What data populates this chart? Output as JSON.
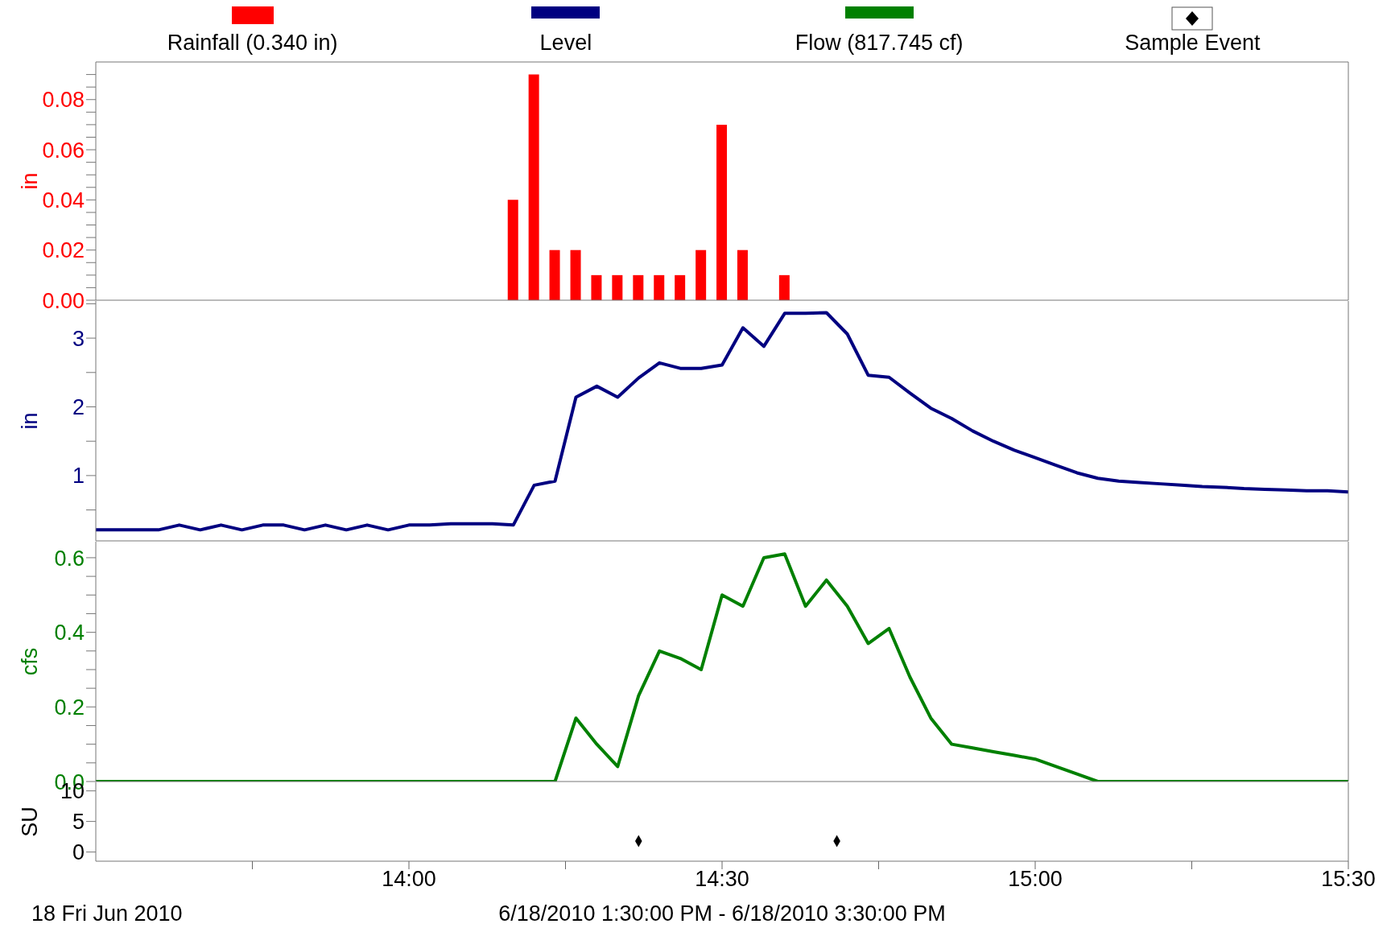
{
  "chart_data": [
    {
      "type": "bar",
      "ylabel": "in",
      "legend": "top",
      "tick_labels": "y",
      "xlim": [
        13.5,
        15.5
      ],
      "ylim": [
        0,
        0.095
      ],
      "yticks": [
        {
          "value": 0,
          "label": "0.00"
        },
        {
          "value": 0.005,
          "label": null
        },
        {
          "value": 0.01,
          "label": null
        },
        {
          "value": 0.015,
          "label": null
        },
        0.02,
        {
          "value": 0.025,
          "label": null
        },
        {
          "value": 0.03,
          "label": null
        },
        {
          "value": 0.035,
          "label": null
        },
        0.04,
        {
          "value": 0.045,
          "label": null
        },
        {
          "value": 0.05,
          "label": null
        },
        {
          "value": 0.055,
          "label": null
        },
        0.06,
        {
          "value": 0.065,
          "label": null
        },
        {
          "value": 0.07,
          "label": null
        },
        {
          "value": 0.075,
          "label": null
        },
        0.08,
        {
          "value": 0.085,
          "label": null
        },
        {
          "value": 0.09,
          "label": null
        }
      ],
      "series": [
        {
          "name": "Rainfall (0.340 in)",
          "color": "#ff0000",
          "x": [
            14.1667,
            14.2,
            14.2333,
            14.2667,
            14.3,
            14.3333,
            14.3667,
            14.4,
            14.4333,
            14.4667,
            14.5,
            14.5333,
            14.6
          ],
          "values": [
            0.04,
            0.09,
            0.02,
            0.02,
            0.01,
            0.01,
            0.01,
            0.01,
            0.01,
            0.02,
            0.07,
            0.02,
            0.01
          ]
        }
      ]
    },
    {
      "type": "line",
      "ylabel": "in",
      "legend": "top",
      "tick_labels": "y",
      "marker": "none",
      "xlim": [
        13.5,
        15.5
      ],
      "ylim": [
        0.05,
        3.54
      ],
      "yticks": [
        {
          "value": 0.5,
          "label": null
        },
        1,
        {
          "value": 1.5,
          "label": null
        },
        2,
        {
          "value": 2.5,
          "label": null
        },
        3,
        {
          "value": 3.5,
          "label": null
        }
      ],
      "x": [
        13.5,
        13.5333,
        13.5667,
        13.6,
        13.6333,
        13.6667,
        13.7,
        13.7333,
        13.7667,
        13.8,
        13.8333,
        13.8667,
        13.9,
        13.9333,
        13.9667,
        14,
        14.0333,
        14.0667,
        14.1,
        14.1333,
        14.1667,
        14.2,
        14.2333,
        14.2667,
        14.3,
        14.3333,
        14.3667,
        14.4,
        14.4333,
        14.4667,
        14.5,
        14.5333,
        14.5667,
        14.6,
        14.6333,
        14.6667,
        14.7,
        14.7333,
        14.7667,
        14.8,
        14.8333,
        14.8667,
        14.9,
        14.9333,
        14.9667,
        15,
        15.0333,
        15.0667,
        15.1,
        15.1333,
        15.1667,
        15.2,
        15.2333,
        15.2667,
        15.3,
        15.3333,
        15.3667,
        15.4,
        15.4333,
        15.4667,
        15.5
      ],
      "series": [
        {
          "name": "Level",
          "color": "#000080",
          "values": [
            0.21,
            0.21,
            0.21,
            0.21,
            0.28,
            0.21,
            0.28,
            0.21,
            0.28,
            0.28,
            0.21,
            0.28,
            0.21,
            0.28,
            0.21,
            0.28,
            0.28,
            0.3,
            0.3,
            0.3,
            0.28,
            0.86,
            0.92,
            2.14,
            2.3,
            2.14,
            2.42,
            2.64,
            2.56,
            2.56,
            2.61,
            3.15,
            2.88,
            3.36,
            3.36,
            3.37,
            3.06,
            2.46,
            2.43,
            2.2,
            1.98,
            1.83,
            1.65,
            1.5,
            1.37,
            1.26,
            1.15,
            1.04,
            0.96,
            0.92,
            0.9,
            0.88,
            0.86,
            0.84,
            0.83,
            0.81,
            0.8,
            0.79,
            0.78,
            0.78,
            0.76
          ]
        }
      ]
    },
    {
      "type": "line",
      "ylabel": "cfs",
      "legend": "top",
      "tick_labels": "y",
      "marker": "none",
      "xlim": [
        13.5,
        15.5
      ],
      "ylim": [
        0,
        0.643
      ],
      "yticks": [
        {
          "value": 0,
          "label": "0.0"
        },
        {
          "value": 0.05,
          "label": null
        },
        {
          "value": 0.1,
          "label": null
        },
        {
          "value": 0.15,
          "label": null
        },
        0.2,
        {
          "value": 0.25,
          "label": null
        },
        {
          "value": 0.3,
          "label": null
        },
        {
          "value": 0.35,
          "label": null
        },
        0.4,
        {
          "value": 0.45,
          "label": null
        },
        {
          "value": 0.5,
          "label": null
        },
        {
          "value": 0.55,
          "label": null
        },
        0.6
      ],
      "x": [
        13.5,
        13.5333,
        13.5667,
        13.6,
        13.6333,
        13.6667,
        13.7,
        13.7333,
        13.7667,
        13.8,
        13.8333,
        13.8667,
        13.9,
        13.9333,
        13.9667,
        14,
        14.0333,
        14.0667,
        14.1,
        14.1333,
        14.1667,
        14.2,
        14.2333,
        14.2667,
        14.3,
        14.3333,
        14.3667,
        14.4,
        14.4333,
        14.4667,
        14.5,
        14.5333,
        14.5667,
        14.6,
        14.6333,
        14.6667,
        14.7,
        14.7333,
        14.7667,
        14.8,
        14.8333,
        14.8667,
        14.9,
        14.9333,
        14.9667,
        15,
        15.0333,
        15.0667,
        15.1,
        15.1333,
        15.1667,
        15.2,
        15.2333,
        15.2667,
        15.3,
        15.3333,
        15.3667,
        15.4,
        15.4333,
        15.4667,
        15.5
      ],
      "series": [
        {
          "name": "Flow (817.745 cf)",
          "color": "#008000",
          "values": [
            0,
            0,
            0,
            0,
            0,
            0,
            0,
            0,
            0,
            0,
            0,
            0,
            0,
            0,
            0,
            0,
            0,
            0,
            0,
            0,
            0,
            0,
            0,
            0.17,
            0.1,
            0.04,
            0.23,
            0.35,
            0.33,
            0.3,
            0.5,
            0.47,
            0.6,
            0.61,
            0.47,
            0.54,
            0.47,
            0.37,
            0.41,
            0.28,
            0.17,
            0.1,
            0.09,
            0.08,
            0.07,
            0.06,
            0.04,
            0.02,
            0,
            0,
            0,
            0,
            0,
            0,
            0,
            0,
            0,
            0,
            0,
            0,
            0
          ]
        }
      ]
    },
    {
      "type": "scatter",
      "ylabel": "SU",
      "legend": "top",
      "marker": "diamond",
      "xlim": [
        13.5,
        15.5
      ],
      "ylim": [
        -1.5,
        11.4
      ],
      "yticks": [
        0,
        5,
        10
      ],
      "xticks": [
        {
          "value": 13.75,
          "label": null
        },
        {
          "value": 14,
          "label": "14:00"
        },
        {
          "value": 14.25,
          "label": null
        },
        {
          "value": 14.5,
          "label": "14:30"
        },
        {
          "value": 14.75,
          "label": null
        },
        {
          "value": 15,
          "label": "15:00"
        },
        {
          "value": 15.25,
          "label": null
        },
        {
          "value": 15.5,
          "label": "15:30"
        }
      ],
      "annotations": [
        "18 Fri Jun 2010",
        "6/18/2010 1:30:00 PM - 6/18/2010 3:30:00 PM"
      ],
      "series": [
        {
          "name": "Sample Event",
          "color": "#000000",
          "x": [
            14.3667,
            14.6833
          ],
          "values": [
            1.8,
            1.8
          ]
        }
      ]
    }
  ]
}
